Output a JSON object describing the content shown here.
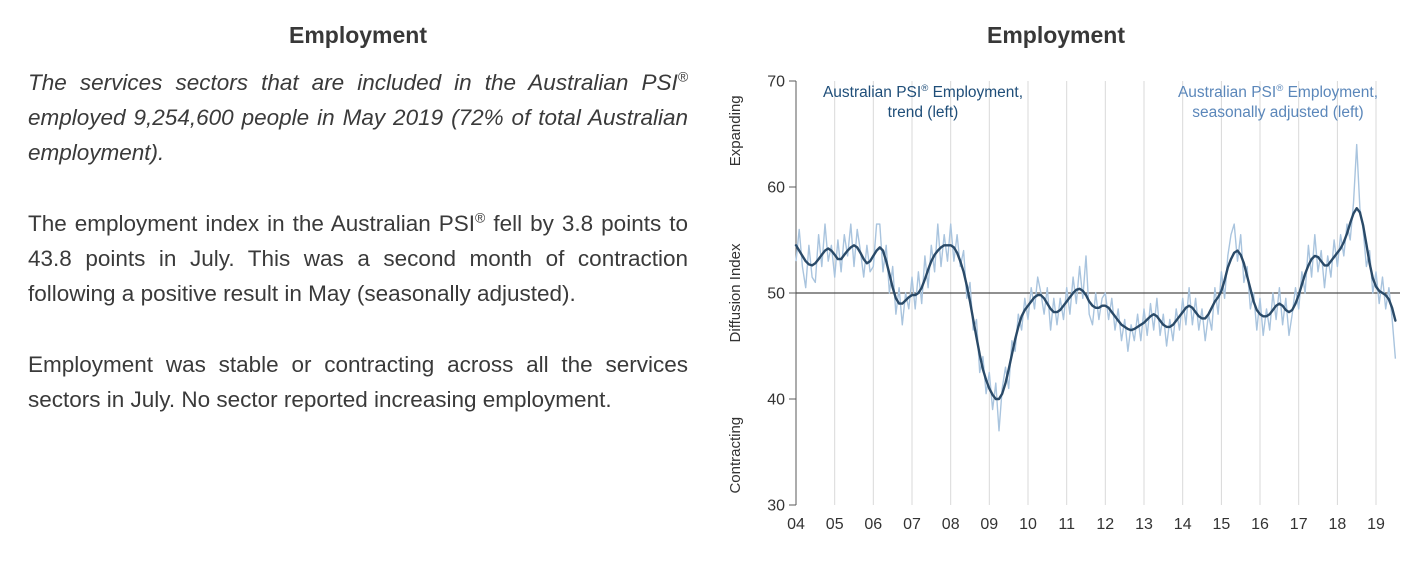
{
  "left_panel": {
    "title": "Employment",
    "intro_paragraph": "The services sectors that are included in the Australian PSI® employed 9,254,600 people in May 2019 (72% of total Australian employment).",
    "index_paragraph": "The employment index in the Australian PSI® fell by 3.8 points to 43.8 points in July. This was a second month of contraction following a positive result in May (seasonally adjusted).",
    "sectors_paragraph": "Employment was stable or contracting across all the services sectors in July. No sector reported increasing employment."
  },
  "chart_panel": {
    "title": "Employment",
    "trend_label_line1": "Australian PSI® Employment,",
    "trend_label_line2": "trend (left)",
    "sa_label_line1": "Australian PSI® Employment,",
    "sa_label_line2": "seasonally adjusted (left)"
  },
  "chart_data": {
    "type": "line",
    "title": "Employment",
    "ylabel": "Diffusion Index",
    "y_axis_upper_label": "Expanding",
    "y_axis_lower_label": "Contracting",
    "ylim": [
      30,
      70
    ],
    "yticks": [
      30,
      40,
      50,
      60,
      70
    ],
    "reference_line_y": 50,
    "grid": "vertical-yearly",
    "legend_position": "top-inside",
    "x_start_year": 2004,
    "points_per_year": 12,
    "xtick_labels": [
      "04",
      "05",
      "06",
      "07",
      "08",
      "09",
      "10",
      "11",
      "12",
      "13",
      "14",
      "15",
      "16",
      "17",
      "18",
      "19"
    ],
    "colors": {
      "trend": "#2a4a68",
      "seasonally_adjusted": "#a9c4de",
      "trend_label": "#1f4e79",
      "sa_label": "#5b87ba",
      "gridline": "#d9d9d9",
      "axis": "#595959",
      "reference_line": "#4d4d4d"
    },
    "series": [
      {
        "name": "Australian PSI® Employment, trend (left)",
        "values": [
          54.5,
          54.0,
          53.5,
          53.0,
          52.7,
          52.6,
          52.8,
          53.2,
          53.6,
          54.0,
          54.2,
          54.0,
          53.6,
          53.2,
          53.2,
          53.6,
          54.0,
          54.3,
          54.5,
          54.3,
          53.8,
          53.2,
          52.8,
          53.0,
          53.5,
          54.0,
          54.3,
          54.0,
          53.0,
          51.8,
          50.5,
          49.5,
          49.0,
          49.0,
          49.3,
          49.6,
          49.8,
          49.8,
          50.0,
          50.5,
          51.3,
          52.2,
          53.0,
          53.6,
          54.0,
          54.3,
          54.5,
          54.5,
          54.5,
          54.3,
          53.8,
          53.0,
          52.0,
          50.7,
          49.2,
          47.5,
          45.8,
          44.2,
          42.8,
          41.8,
          41.0,
          40.4,
          40.0,
          40.0,
          40.5,
          41.5,
          42.8,
          44.2,
          45.6,
          46.8,
          47.8,
          48.4,
          48.8,
          49.2,
          49.6,
          49.8,
          49.8,
          49.5,
          49.0,
          48.5,
          48.2,
          48.2,
          48.4,
          48.8,
          49.2,
          49.6,
          50.0,
          50.3,
          50.4,
          50.2,
          49.8,
          49.2,
          48.8,
          48.6,
          48.6,
          48.8,
          48.8,
          48.6,
          48.2,
          47.8,
          47.4,
          47.0,
          46.8,
          46.6,
          46.5,
          46.6,
          46.8,
          47.0,
          47.2,
          47.5,
          47.8,
          48.0,
          47.8,
          47.4,
          47.0,
          46.8,
          46.8,
          47.0,
          47.4,
          47.8,
          48.2,
          48.6,
          48.8,
          48.6,
          48.2,
          47.8,
          47.6,
          47.6,
          48.0,
          48.6,
          49.2,
          49.6,
          50.2,
          51.2,
          52.4,
          53.2,
          53.8,
          54.0,
          53.6,
          52.8,
          51.6,
          50.4,
          49.2,
          48.4,
          48.0,
          47.8,
          47.8,
          48.0,
          48.4,
          48.8,
          49.0,
          48.8,
          48.4,
          48.2,
          48.4,
          49.0,
          49.8,
          50.8,
          51.8,
          52.6,
          53.2,
          53.5,
          53.4,
          53.0,
          52.6,
          52.6,
          53.0,
          53.4,
          53.8,
          54.2,
          54.8,
          55.6,
          56.6,
          57.5,
          58.0,
          57.6,
          56.4,
          54.6,
          52.8,
          51.4,
          50.6,
          50.2,
          50.0,
          49.8,
          49.4,
          48.6,
          47.4
        ]
      },
      {
        "name": "Australian PSI® Employment, seasonally adjusted (left)",
        "values": [
          53.0,
          56.0,
          52.5,
          50.5,
          54.5,
          51.5,
          51.0,
          55.5,
          52.5,
          56.5,
          53.0,
          54.5,
          51.5,
          55.0,
          52.0,
          55.5,
          53.5,
          56.5,
          52.5,
          56.0,
          54.0,
          51.5,
          54.5,
          52.0,
          52.5,
          56.5,
          56.5,
          52.0,
          54.5,
          50.0,
          52.5,
          48.0,
          50.5,
          47.0,
          50.0,
          48.5,
          51.5,
          48.5,
          52.0,
          49.0,
          53.5,
          50.5,
          54.5,
          52.0,
          56.5,
          52.5,
          55.5,
          53.0,
          56.5,
          53.0,
          55.5,
          52.5,
          54.0,
          49.5,
          51.0,
          46.5,
          47.5,
          42.5,
          44.0,
          40.5,
          42.5,
          39.0,
          41.5,
          37.0,
          41.0,
          43.0,
          41.0,
          45.5,
          44.5,
          48.0,
          46.5,
          49.5,
          47.5,
          50.5,
          48.5,
          51.5,
          50.0,
          48.0,
          50.5,
          46.5,
          49.5,
          47.0,
          49.5,
          47.5,
          50.5,
          48.0,
          51.5,
          49.0,
          52.5,
          49.5,
          53.5,
          48.0,
          47.0,
          50.0,
          47.5,
          49.5,
          50.0,
          47.5,
          49.5,
          46.5,
          48.5,
          45.5,
          47.5,
          44.5,
          47.0,
          45.5,
          48.0,
          45.5,
          48.5,
          46.0,
          49.0,
          46.5,
          49.5,
          46.0,
          48.0,
          45.0,
          47.5,
          45.5,
          48.5,
          46.5,
          49.5,
          47.0,
          50.5,
          47.0,
          49.5,
          46.5,
          48.5,
          45.5,
          48.0,
          46.5,
          50.5,
          48.0,
          52.0,
          49.5,
          53.5,
          55.5,
          56.5,
          53.0,
          55.5,
          51.0,
          52.5,
          48.5,
          50.0,
          46.5,
          49.5,
          46.0,
          48.5,
          46.5,
          50.0,
          47.5,
          50.5,
          47.0,
          49.5,
          46.0,
          48.0,
          50.5,
          48.5,
          52.0,
          50.0,
          54.5,
          51.5,
          55.5,
          52.0,
          54.0,
          50.5,
          53.5,
          51.5,
          55.0,
          52.5,
          55.5,
          53.5,
          56.5,
          55.0,
          58.5,
          64.0,
          58.0,
          56.0,
          52.5,
          54.0,
          50.0,
          52.0,
          49.0,
          51.5,
          48.5,
          50.5,
          47.6,
          43.8
        ]
      }
    ]
  }
}
